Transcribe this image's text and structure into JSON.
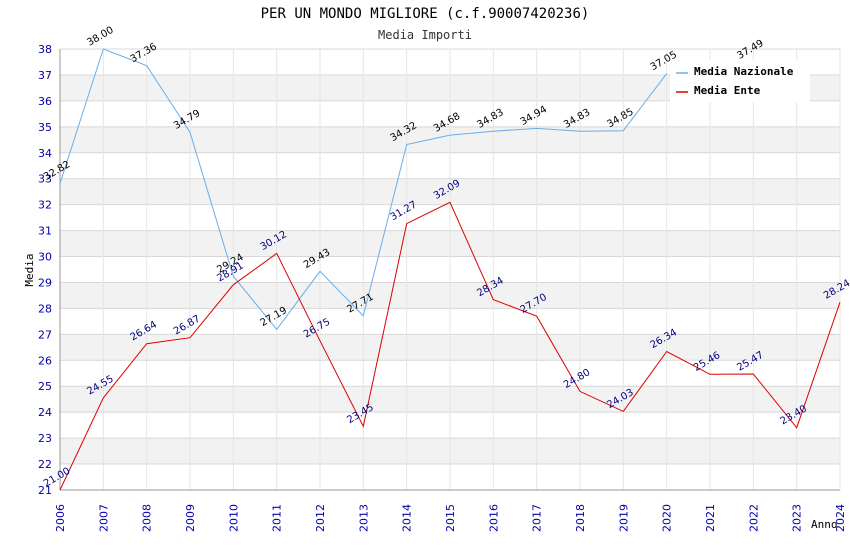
{
  "chart_data": {
    "type": "line",
    "title": "PER UN MONDO MIGLIORE (c.f.90007420236)",
    "subtitle": "Media Importi",
    "xlabel": "Anno",
    "ylabel": "Media",
    "ylim": [
      21,
      38
    ],
    "grid": true,
    "legend_position": "top-right",
    "x": [
      "2006",
      "2007",
      "2008",
      "2009",
      "2010",
      "2011",
      "2012",
      "2013",
      "2014",
      "2015",
      "2016",
      "2017",
      "2018",
      "2019",
      "2020",
      "2021",
      "2022",
      "2023",
      "2024"
    ],
    "y_ticks": [
      "21",
      "22",
      "23",
      "24",
      "25",
      "26",
      "27",
      "28",
      "29",
      "30",
      "31",
      "32",
      "33",
      "34",
      "35",
      "36",
      "37",
      "38"
    ],
    "series": [
      {
        "name": "Media Nazionale",
        "color": "#6aaee8",
        "values": [
          32.82,
          38.0,
          37.36,
          34.79,
          29.24,
          27.19,
          29.43,
          27.71,
          34.32,
          34.68,
          34.83,
          34.94,
          34.83,
          34.85,
          37.05,
          null,
          37.49,
          null,
          null
        ],
        "labels": [
          "32.82",
          "38.00",
          "37.36",
          "34.79",
          "29.24",
          "27.19",
          "29.43",
          "27.71",
          "34.32",
          "34.68",
          "34.83",
          "34.94",
          "34.83",
          "34.85",
          "37.05",
          "",
          "37.49",
          "",
          ""
        ]
      },
      {
        "name": "Media Ente",
        "color": "#dd0000",
        "values": [
          21.0,
          24.55,
          26.64,
          26.87,
          28.91,
          30.12,
          26.75,
          23.45,
          31.27,
          32.09,
          28.34,
          27.7,
          24.8,
          24.03,
          26.34,
          25.46,
          25.47,
          23.4,
          28.24
        ],
        "labels": [
          "21.00",
          "24.55",
          "26.64",
          "26.87",
          "28.91",
          "30.12",
          "26.75",
          "23.45",
          "31.27",
          "32.09",
          "28.34",
          "27.70",
          "24.80",
          "24.03",
          "26.34",
          "25.46",
          "25.47",
          "23.40",
          "28.24"
        ]
      }
    ]
  }
}
